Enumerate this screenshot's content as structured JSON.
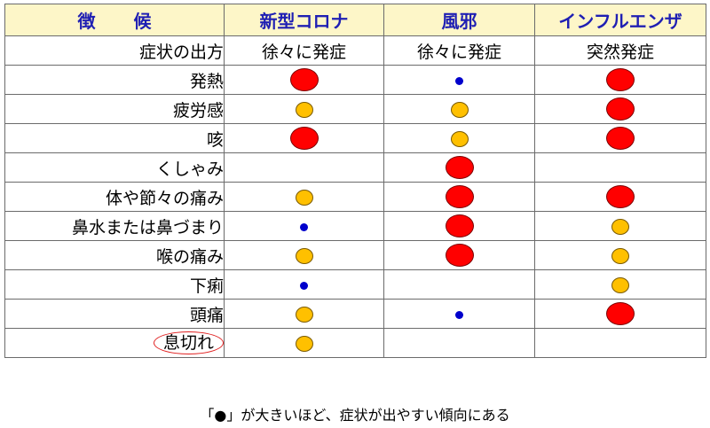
{
  "header": {
    "symptom_col": "徴 候",
    "columns": [
      "新型コロナ",
      "風邪",
      "インフルエンザ"
    ]
  },
  "onset_row": {
    "label": "症状の出方",
    "values": [
      "徐々に発症",
      "徐々に発症",
      "突然発症"
    ]
  },
  "rows": [
    {
      "label": "発熱",
      "levels": [
        3,
        1,
        3
      ]
    },
    {
      "label": "疲労感",
      "levels": [
        2,
        2,
        3
      ]
    },
    {
      "label": "咳",
      "levels": [
        3,
        2,
        3
      ]
    },
    {
      "label": "くしゃみ",
      "levels": [
        0,
        3,
        0
      ]
    },
    {
      "label": "体や節々の痛み",
      "levels": [
        2,
        3,
        3
      ]
    },
    {
      "label": "鼻水または鼻づまり",
      "levels": [
        1,
        3,
        2
      ]
    },
    {
      "label": "喉の痛み",
      "levels": [
        2,
        3,
        2
      ]
    },
    {
      "label": "下痢",
      "levels": [
        1,
        0,
        2
      ]
    },
    {
      "label": "頭痛",
      "levels": [
        2,
        1,
        3
      ]
    },
    {
      "label": "息切れ",
      "levels": [
        2,
        0,
        0
      ],
      "circled": true
    }
  ],
  "note": "「●」が大きいほど、症状が出やすい傾向にある",
  "colors": {
    "large": "#ff0000",
    "medium": "#ffc000",
    "small": "#0000cc",
    "header_bg": "#fdf6c8",
    "header_text": "#1f1fb3"
  }
}
